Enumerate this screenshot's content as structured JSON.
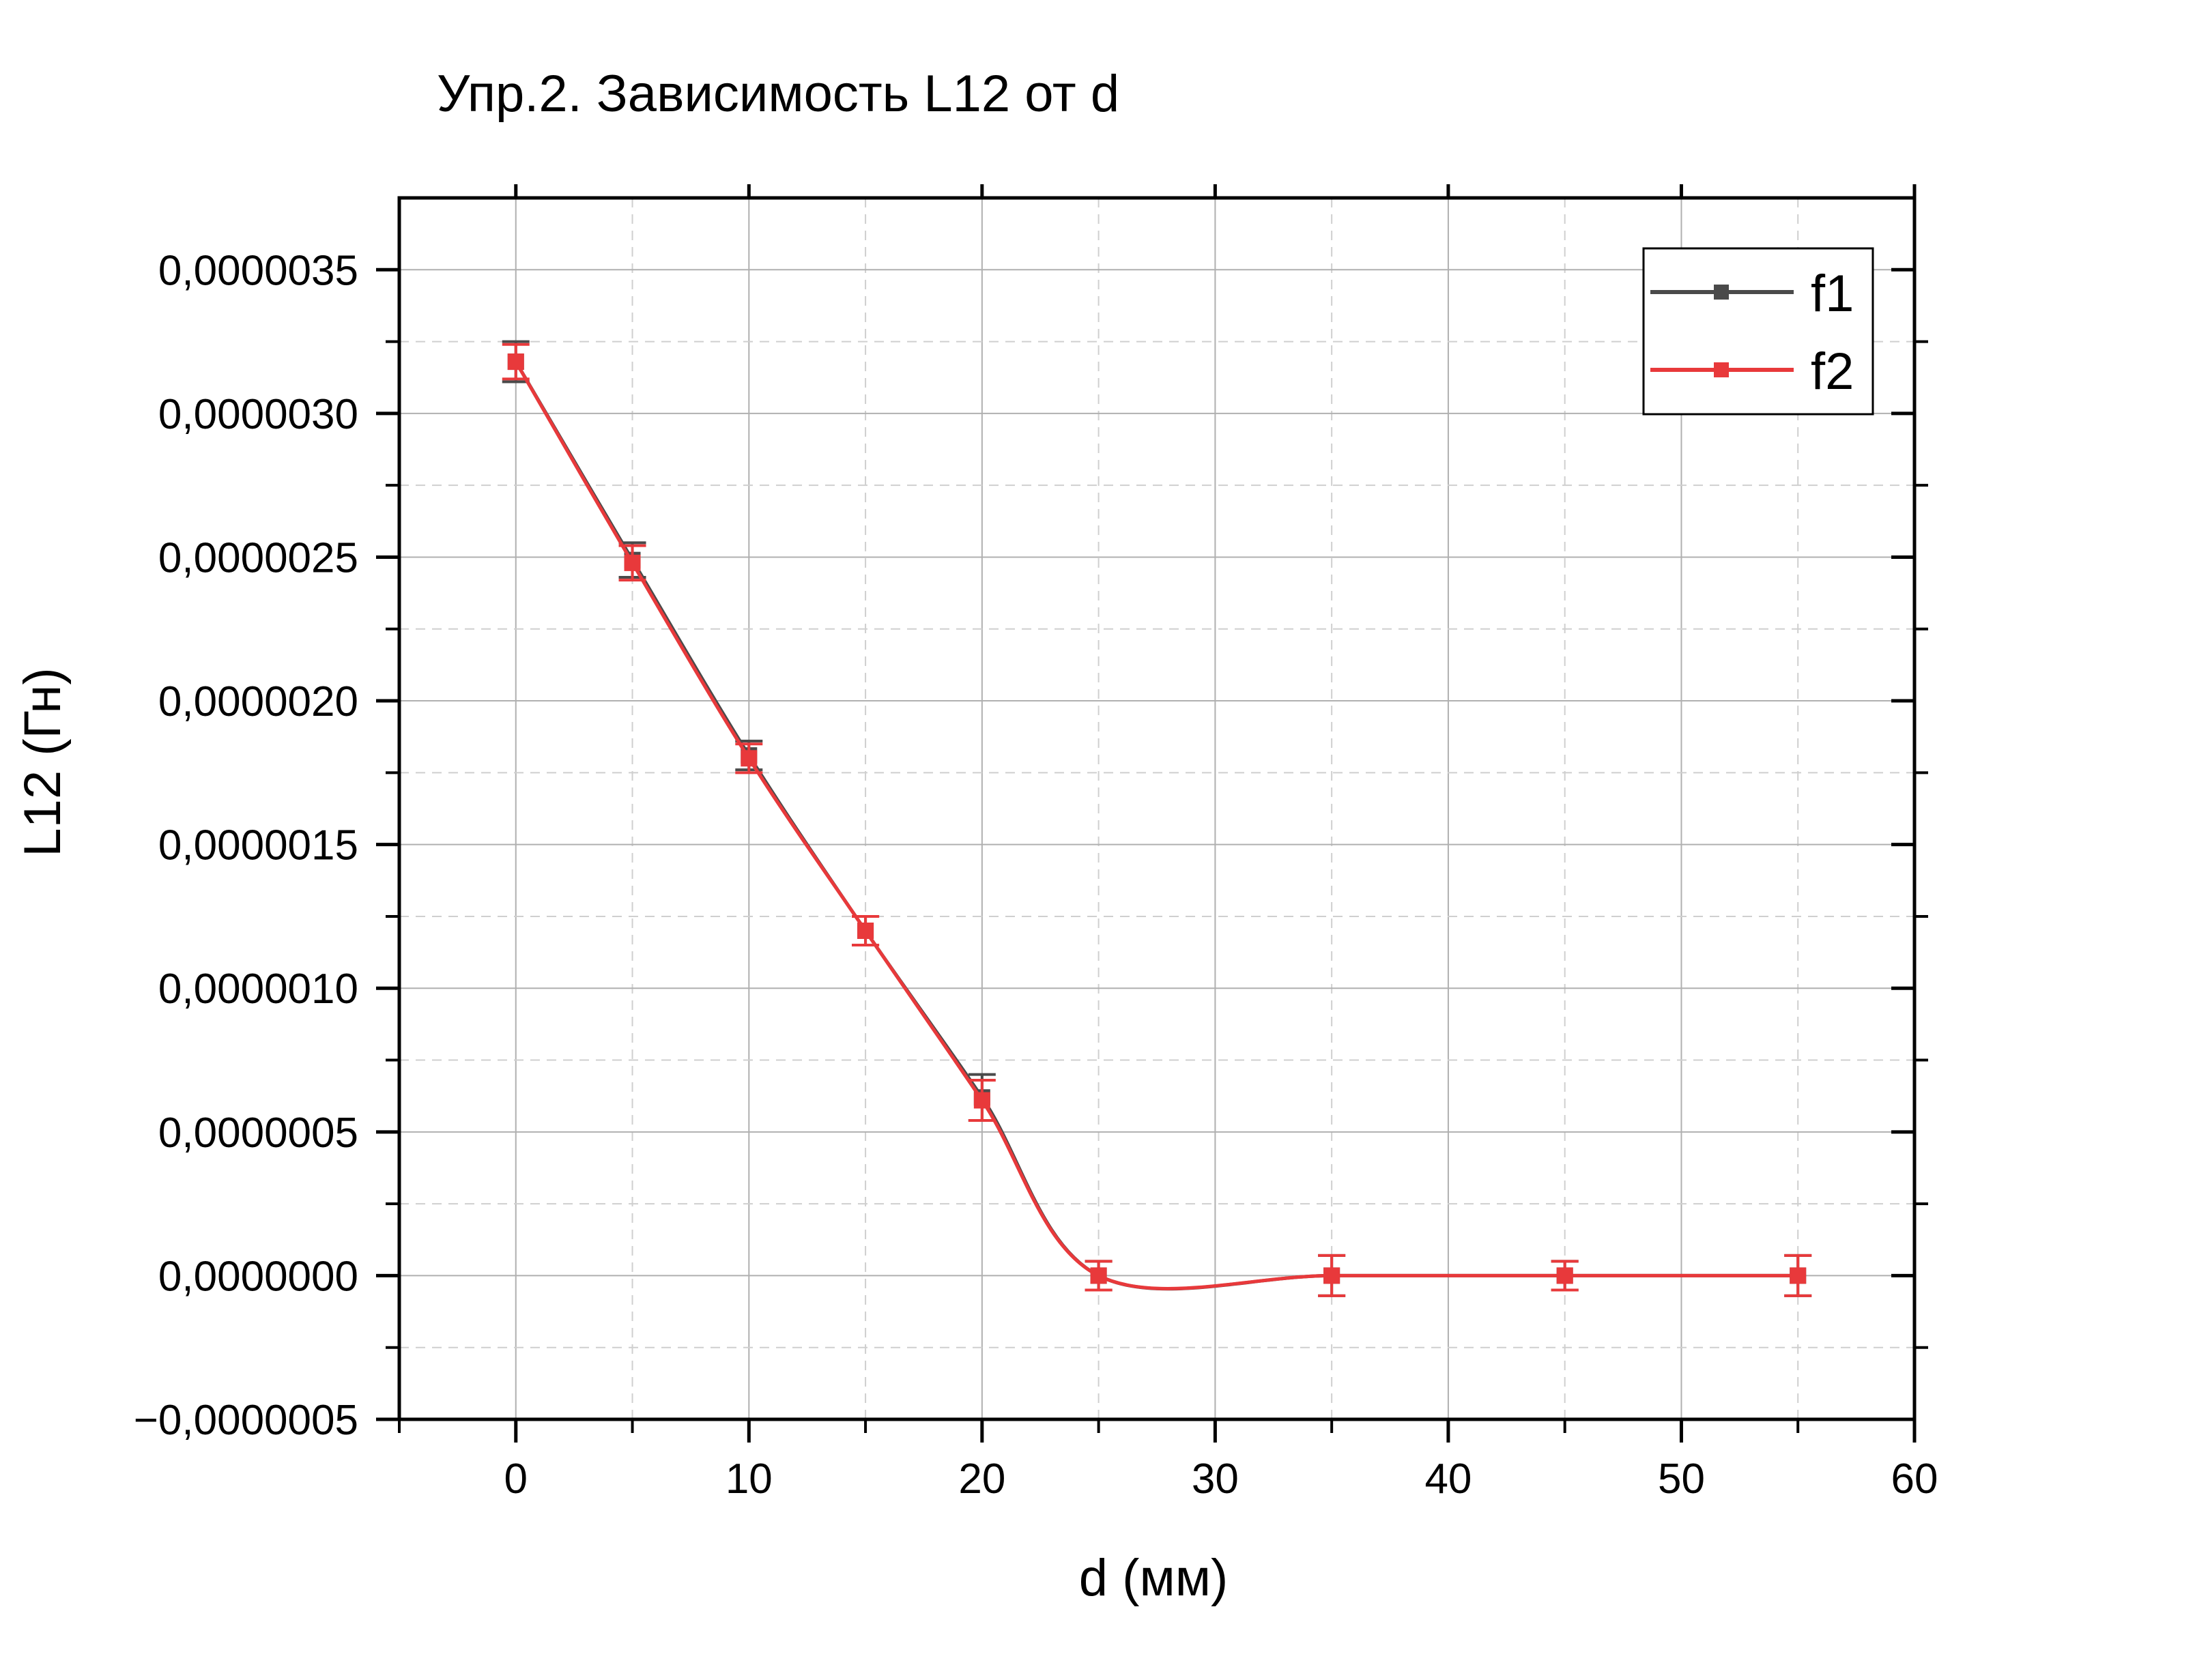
{
  "chart_data": {
    "type": "line",
    "title": "Упр.2. Зависимость L12 от d",
    "xlabel": "d (мм)",
    "ylabel": "L12 (Гн)",
    "xlim": [
      -5,
      60
    ],
    "ylim": [
      -5e-07,
      3.75e-06
    ],
    "x_ticks": [
      0,
      10,
      20,
      30,
      40,
      50,
      60
    ],
    "x_tick_labels": [
      "0",
      "10",
      "20",
      "30",
      "40",
      "50",
      "60"
    ],
    "y_ticks": [
      -5e-07,
      0,
      5e-07,
      1e-06,
      1.5e-06,
      2e-06,
      2.5e-06,
      3e-06,
      3.5e-06
    ],
    "y_tick_labels": [
      "−0,0000005",
      "0,0000000",
      "0,0000005",
      "0,0000010",
      "0,0000015",
      "0,0000020",
      "0,0000025",
      "0,0000030",
      "0,0000035"
    ],
    "grid": true,
    "legend_position": "top-right",
    "x": [
      0,
      5,
      10,
      15,
      20,
      25,
      35,
      45,
      55
    ],
    "series": [
      {
        "name": "f1",
        "color": "#4a4a4a",
        "values": [
          3.18e-06,
          2.49e-06,
          1.81e-06,
          1.2e-06,
          6.2e-07,
          0.0,
          0.0,
          0.0,
          0.0
        ],
        "errors": [
          7e-08,
          6e-08,
          5e-08,
          5e-08,
          8e-08,
          5e-08,
          7e-08,
          5e-08,
          7e-08
        ]
      },
      {
        "name": "f2",
        "color": "#e8393b",
        "values": [
          3.18e-06,
          2.48e-06,
          1.8e-06,
          1.2e-06,
          6.1e-07,
          0.0,
          0.0,
          0.0,
          0.0
        ],
        "errors": [
          6e-08,
          6e-08,
          5e-08,
          5e-08,
          7e-08,
          5e-08,
          7e-08,
          5e-08,
          7e-08
        ]
      }
    ]
  }
}
